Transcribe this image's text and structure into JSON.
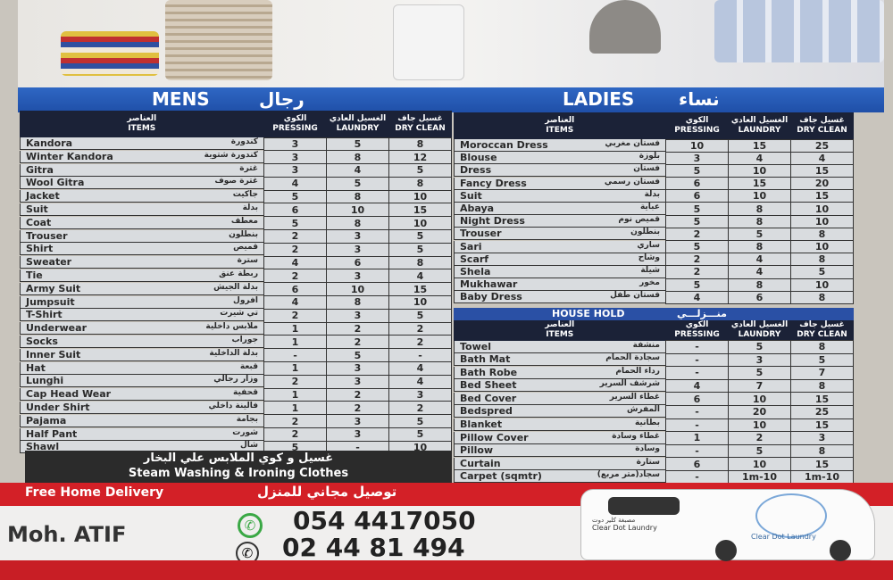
{
  "mens": {
    "title_en": "MENS",
    "title_ar": "رجال",
    "headers": {
      "items_ar": "العناصر",
      "items": "ITEMS",
      "pressing_ar": "الكوي",
      "pressing": "PRESSING",
      "laundry_ar": "الغسيل العادي",
      "laundry": "LAUNDRY",
      "dry_ar": "غسيل جاف",
      "dry": "DRY CLEAN"
    },
    "rows": [
      [
        "Kandora",
        "كندورة",
        "3",
        "5",
        "8"
      ],
      [
        "Winter Kandora",
        "كندورة شتوية",
        "3",
        "8",
        "12"
      ],
      [
        "Gitra",
        "غترة",
        "3",
        "4",
        "5"
      ],
      [
        "Wool Gitra",
        "غترة صوف",
        "4",
        "5",
        "8"
      ],
      [
        "Jacket",
        "جاكيت",
        "5",
        "8",
        "10"
      ],
      [
        "Suit",
        "بدلة",
        "6",
        "10",
        "15"
      ],
      [
        "Coat",
        "معطف",
        "5",
        "8",
        "10"
      ],
      [
        "Trouser",
        "بنطلون",
        "2",
        "3",
        "5"
      ],
      [
        "Shirt",
        "قميص",
        "2",
        "3",
        "5"
      ],
      [
        "Sweater",
        "سترة",
        "4",
        "6",
        "8"
      ],
      [
        "Tie",
        "ربطة عنق",
        "2",
        "3",
        "4"
      ],
      [
        "Army Suit",
        "بدلة الجيش",
        "6",
        "10",
        "15"
      ],
      [
        "Jumpsuit",
        "افرول",
        "4",
        "8",
        "10"
      ],
      [
        "T-Shirt",
        "تي شيرت",
        "2",
        "3",
        "5"
      ],
      [
        "Underwear",
        "ملابس داخلية",
        "1",
        "2",
        "2"
      ],
      [
        "Socks",
        "جوراب",
        "1",
        "2",
        "2"
      ],
      [
        "Inner Suit",
        "بدلة الداخلية",
        "-",
        "5",
        "-"
      ],
      [
        "Hat",
        "قبعة",
        "1",
        "3",
        "4"
      ],
      [
        "Lunghi",
        "وزار رجالي",
        "2",
        "3",
        "4"
      ],
      [
        "Cap Head Wear",
        "قحفية",
        "1",
        "2",
        "3"
      ],
      [
        "Under Shirt",
        "فالينة داخلي",
        "1",
        "2",
        "2"
      ],
      [
        "Pajama",
        "بجامة",
        "2",
        "3",
        "5"
      ],
      [
        "Half Pant",
        "شورت",
        "2",
        "3",
        "5"
      ],
      [
        "Shawl",
        "شال",
        "5",
        "-",
        "10"
      ]
    ]
  },
  "ladies": {
    "title_en": "LADIES",
    "title_ar": "نساء",
    "rows": [
      [
        "Moroccan Dress",
        "فستان مغربي",
        "10",
        "15",
        "25"
      ],
      [
        "Blouse",
        "بلوزة",
        "3",
        "4",
        "4"
      ],
      [
        "Dress",
        "فستان",
        "5",
        "10",
        "15"
      ],
      [
        "Fancy Dress",
        "فستان رسمي",
        "6",
        "15",
        "20"
      ],
      [
        "Suit",
        "بدلة",
        "6",
        "10",
        "15"
      ],
      [
        "Abaya",
        "عباية",
        "5",
        "8",
        "10"
      ],
      [
        "Night Dress",
        "قميص نوم",
        "5",
        "8",
        "10"
      ],
      [
        "Trouser",
        "بنطلون",
        "2",
        "5",
        "8"
      ],
      [
        "Sari",
        "ساري",
        "5",
        "8",
        "10"
      ],
      [
        "Scarf",
        "وشاح",
        "2",
        "4",
        "8"
      ],
      [
        "Shela",
        "شيلة",
        "2",
        "4",
        "5"
      ],
      [
        "Mukhawar",
        "مخور",
        "5",
        "8",
        "10"
      ],
      [
        "Baby Dress",
        "فستان طفل",
        "4",
        "6",
        "8"
      ]
    ]
  },
  "household": {
    "title_en": "HOUSE HOLD",
    "title_ar": "منـــزلـــي",
    "rows": [
      [
        "Towel",
        "منشفة",
        "-",
        "5",
        "8"
      ],
      [
        "Bath Mat",
        "سجادة الحمام",
        "-",
        "3",
        "5"
      ],
      [
        "Bath Robe",
        "رداء الحمام",
        "-",
        "5",
        "7"
      ],
      [
        "Bed Sheet",
        "شرشف السرير",
        "4",
        "7",
        "8"
      ],
      [
        "Bed Cover",
        "غطاء السرير",
        "6",
        "10",
        "15"
      ],
      [
        "Bedspred",
        "المفرش",
        "-",
        "20",
        "25"
      ],
      [
        "Blanket",
        "بطانية",
        "-",
        "10",
        "15"
      ],
      [
        "Pillow Cover",
        "غطاء وسادة",
        "1",
        "2",
        "3"
      ],
      [
        "Pillow",
        "وسادة",
        "-",
        "5",
        "8"
      ],
      [
        "Curtain",
        "ستارة",
        "6",
        "10",
        "15"
      ],
      [
        "Carpet (sqmtr)",
        "سجاد(متر مربع)",
        "-",
        "1m-10",
        "1m-10"
      ]
    ]
  },
  "steam": {
    "ar": "غسيل و كوي الملابس علي البخار",
    "en": "Steam Washing & Ironing Clothes"
  },
  "delivery": {
    "en": "Free Home Delivery",
    "ar": "توصيل مجاني للمنزل"
  },
  "contact": {
    "name": "Moh. ATIF",
    "whatsapp": "054 4417050",
    "phone": "02  44 81 494",
    "whatsapp_icon": "whatsapp-icon",
    "phone_icon": "phone-icon"
  },
  "brand": {
    "en": "Clear Dot Laundry",
    "ar": "مصبغة كلير دوت"
  },
  "colors": {
    "blue": "#1f4fa8",
    "dark": "#1b2237",
    "red": "#d32027"
  }
}
